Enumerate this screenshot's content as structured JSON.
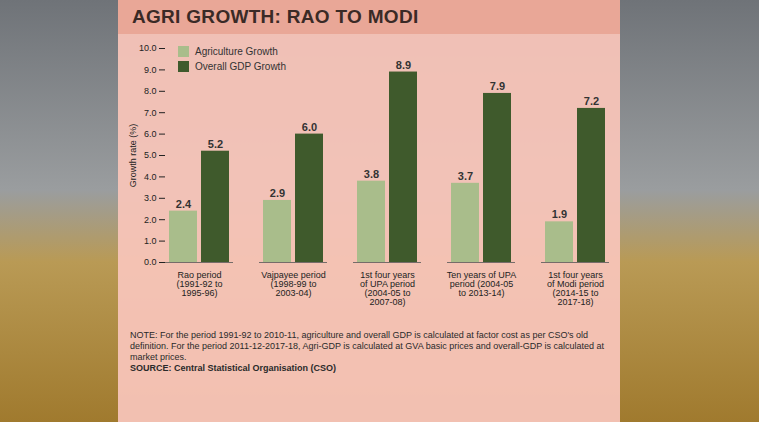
{
  "chart_data": {
    "type": "bar",
    "title": "AGRI GROWTH: RAO TO MODI",
    "y_label": "Growth rate (%)",
    "categories": [
      "Rao period (1991-92 to 1995-96)",
      "Vajpayee period (1998-99 to 2003-04)",
      "1st four years of UPA period (2004-05 to 2007-08)",
      "Ten years of UPA period (2004-05 to 2013-14)",
      "1st four years of Modi period (2014-15 to 2017-18)"
    ],
    "series": [
      {
        "name": "Agriculture Growth",
        "color": "#a9bd8b",
        "values": [
          2.4,
          2.9,
          3.8,
          3.7,
          1.9
        ],
        "value_labels": [
          "2.4",
          "2.9",
          "3.8",
          "3.7",
          "1.9"
        ]
      },
      {
        "name": "Overall GDP Growth",
        "color": "#3f5a2c",
        "values": [
          5.2,
          6.0,
          8.9,
          7.9,
          7.2
        ],
        "value_labels": [
          "5.2",
          "6.0",
          "8.9",
          "7.9",
          "7.2"
        ]
      }
    ],
    "ylim": [
      0,
      10
    ],
    "yticks": [
      {
        "value": 0,
        "label": "0.0"
      },
      {
        "value": 1,
        "label": "1.0"
      },
      {
        "value": 2,
        "label": "2.0"
      },
      {
        "value": 3,
        "label": "3.0"
      },
      {
        "value": 4,
        "label": "4.0"
      },
      {
        "value": 5,
        "label": "5.0"
      },
      {
        "value": 6,
        "label": "6.0"
      },
      {
        "value": 7,
        "label": "7.0"
      },
      {
        "value": 8,
        "label": "8.0"
      },
      {
        "value": 9,
        "label": "9.0"
      },
      {
        "value": 10,
        "label": "10.0"
      }
    ],
    "grid": false,
    "legend": "top-left",
    "data_labels": true,
    "note": "NOTE: For the period 1991-92 to 2010-11, agriculture and overall GDP is calculated at factor cost as per CSO's old definition. For the period 2011-12-2017-18, Agri-GDP is calculated at GVA basic prices and overall-GDP is calculated at market prices.",
    "source": "SOURCE: Central Statistical Organisation (CSO)"
  }
}
